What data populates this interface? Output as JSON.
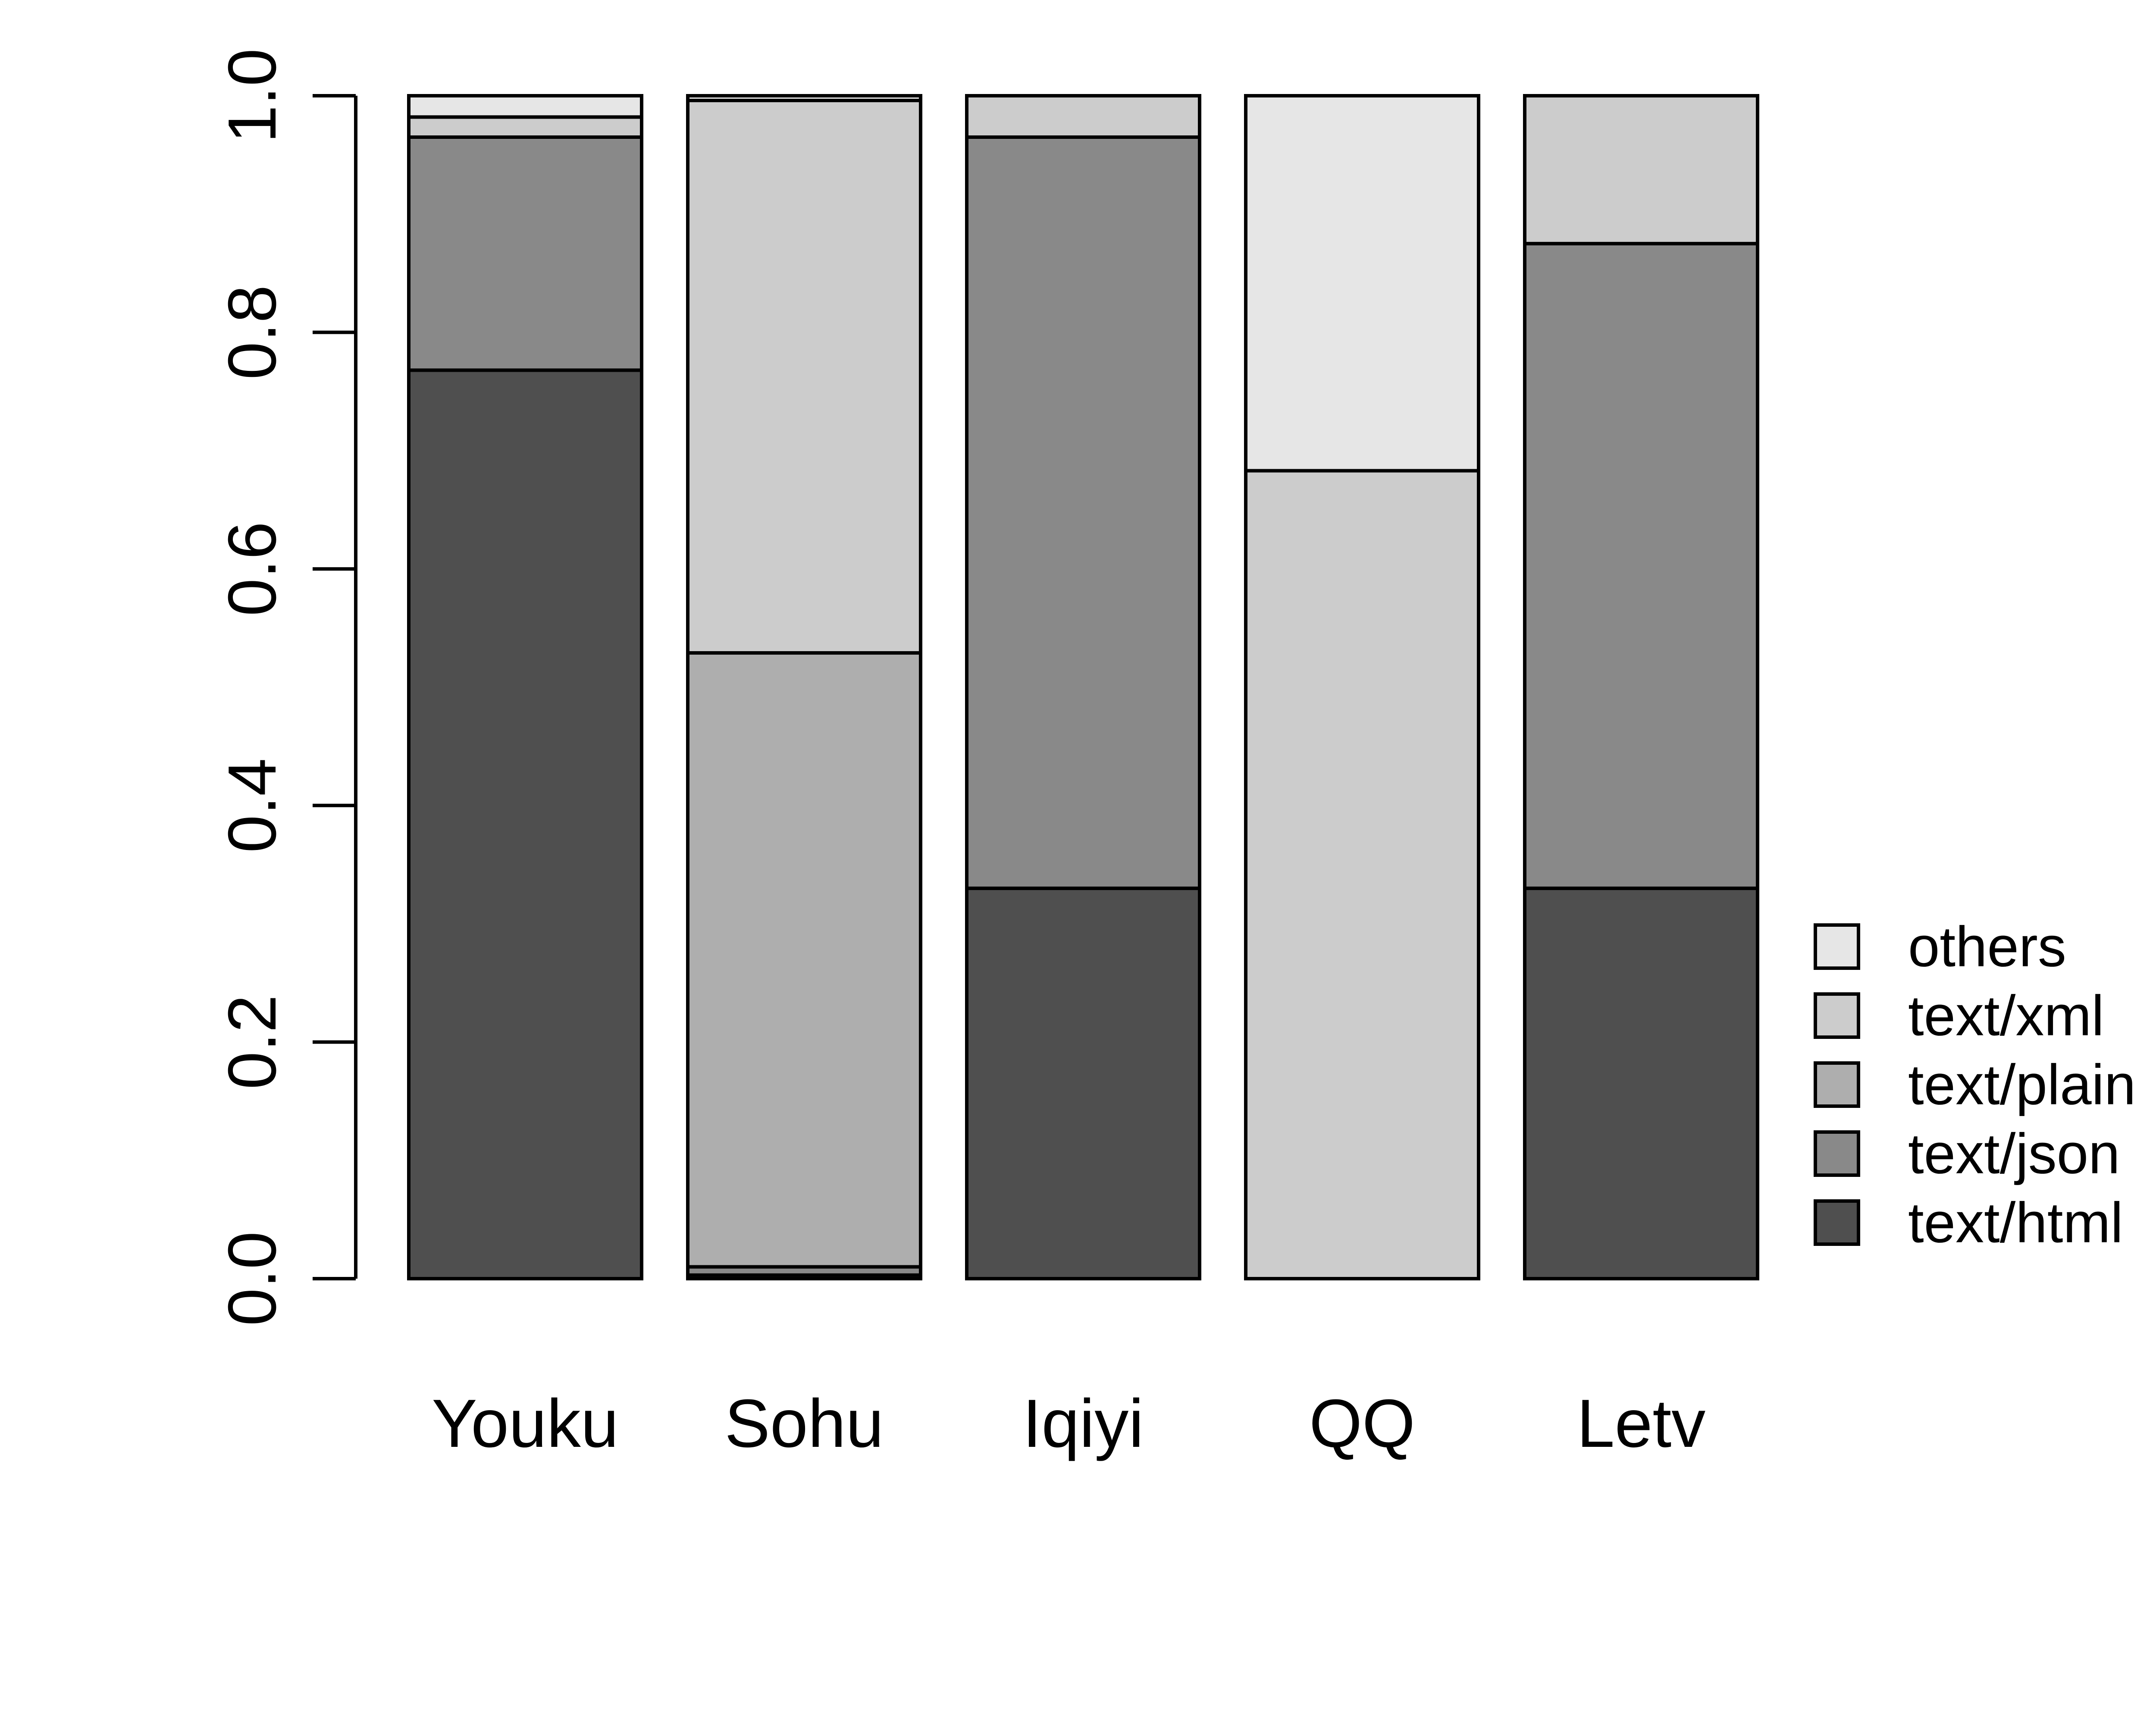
{
  "chart_data": {
    "type": "bar",
    "stacked": true,
    "categories": [
      "Youku",
      "Sohu",
      "Iqiyi",
      "QQ",
      "Letv"
    ],
    "series": [
      {
        "name": "text/html",
        "color": "#4f4f4f",
        "values": [
          0.768,
          0.003,
          0.33,
          0.0,
          0.33
        ]
      },
      {
        "name": "text/json",
        "color": "#898989",
        "values": [
          0.197,
          0.007,
          0.635,
          0.0,
          0.545
        ]
      },
      {
        "name": "text/plain",
        "color": "#aeaeae",
        "values": [
          0.0,
          0.519,
          0.0,
          0.0,
          0.0
        ]
      },
      {
        "name": "text/xml",
        "color": "#cccccc",
        "values": [
          0.017,
          0.467,
          0.035,
          0.683,
          0.125
        ]
      },
      {
        "name": "others",
        "color": "#e6e6e6",
        "values": [
          0.018,
          0.004,
          0.0,
          0.317,
          0.0
        ]
      }
    ],
    "legend_order": [
      "others",
      "text/xml",
      "text/plain",
      "text/json",
      "text/html"
    ],
    "ylim": [
      0,
      1
    ],
    "yticks": [
      "0.0",
      "0.2",
      "0.4",
      "0.6",
      "0.8",
      "1.0"
    ],
    "ytick_values": [
      0,
      0.2,
      0.4,
      0.6,
      0.8,
      1.0
    ],
    "title": "",
    "xlabel": "",
    "ylabel": "",
    "grid": false,
    "legend_position": "right"
  }
}
